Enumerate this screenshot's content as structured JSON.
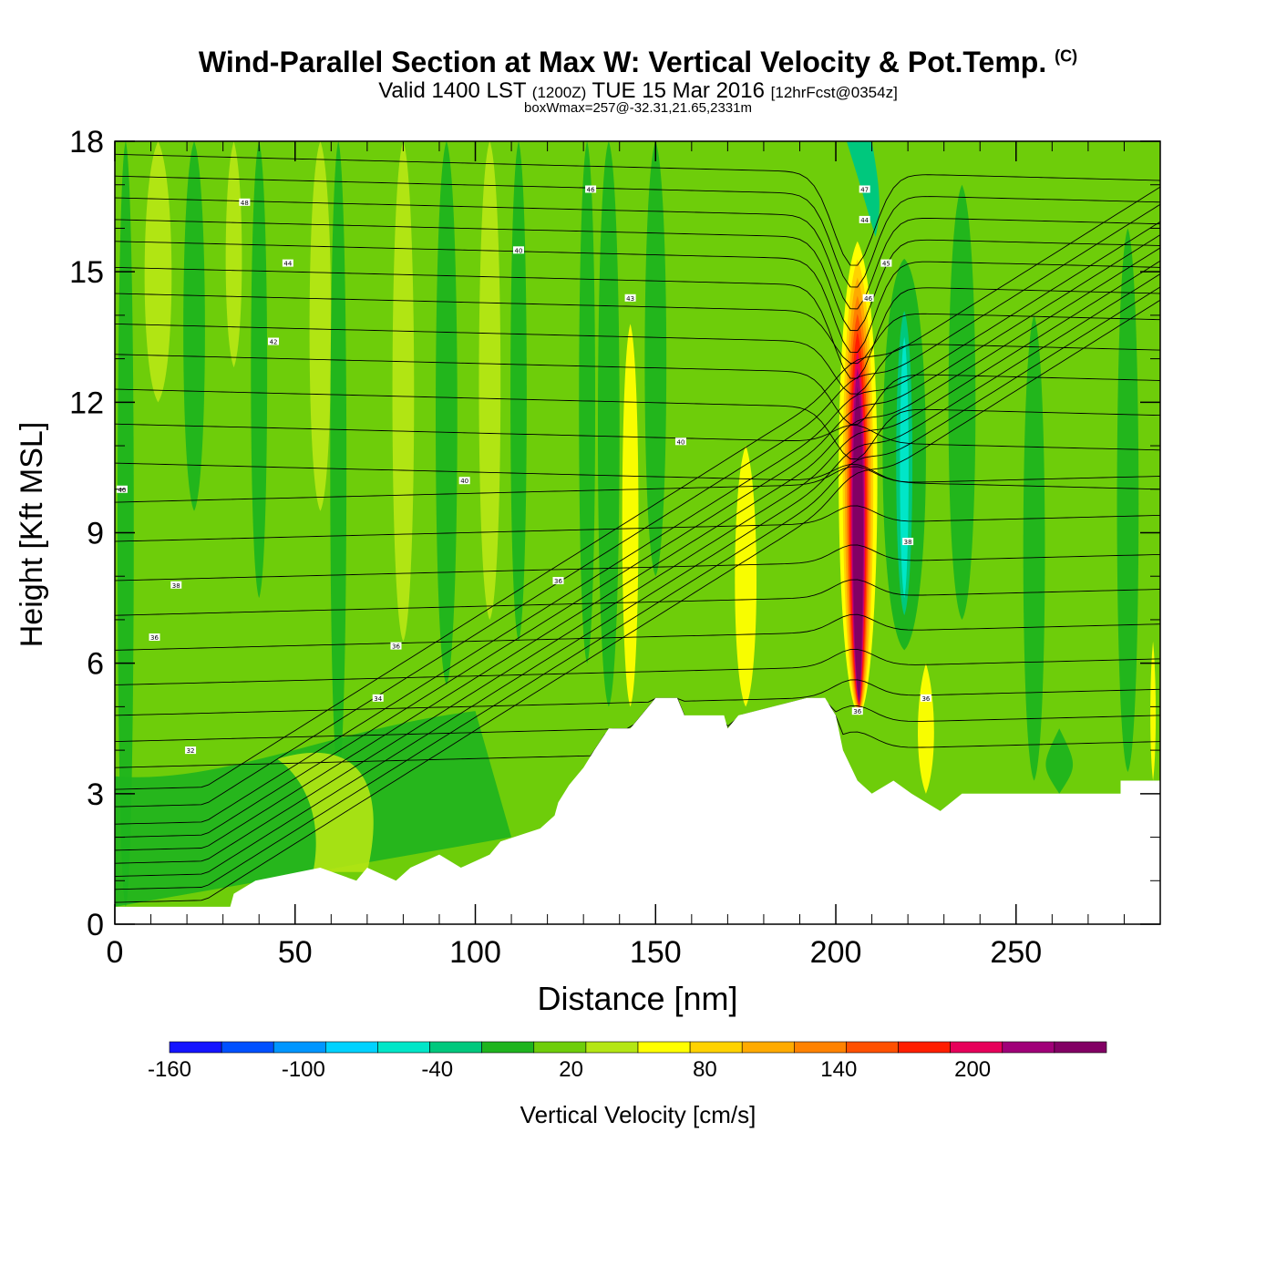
{
  "title": {
    "main": "Wind-Parallel Section at Max W: Vertical Velocity & Pot.Temp.",
    "copyright": "(C)",
    "valid_prefix": "Valid 1400 LST",
    "valid_utc": "(1200Z)",
    "valid_date": "TUE 15 Mar 2016",
    "forecast": "[12hrFcst@0354z]",
    "box_info": "boxWmax=257@-32.31,21.65,2331m"
  },
  "chart_data": {
    "type": "heatmap",
    "xlabel": "Distance [nm]",
    "ylabel": "Height [Kft MSL]",
    "xlim": [
      0,
      290
    ],
    "ylim": [
      0,
      18
    ],
    "xticks": [
      0,
      50,
      100,
      150,
      200,
      250
    ],
    "yticks": [
      0,
      3,
      6,
      9,
      12,
      15,
      18
    ],
    "colorbar": {
      "label": "Vertical Velocity [cm/s]",
      "min": -160,
      "max": 240,
      "step": 20,
      "tick_labels": [
        "-160",
        "-100",
        "-40",
        "20",
        "80",
        "140",
        "200"
      ],
      "tick_values": [
        -160,
        -100,
        -40,
        20,
        80,
        140,
        200
      ],
      "colors": [
        "#1414ff",
        "#0050ff",
        "#0096ff",
        "#00d2ff",
        "#00e6c8",
        "#00c87d",
        "#1eb41e",
        "#6ecd0a",
        "#b4e614",
        "#ffff00",
        "#ffd200",
        "#ffaa00",
        "#ff8200",
        "#ff5000",
        "#ff1e00",
        "#e6005a",
        "#a00078",
        "#820064"
      ]
    },
    "terrain_profile": [
      [
        0,
        0.4
      ],
      [
        32,
        0.4
      ],
      [
        33,
        0.7
      ],
      [
        39,
        1.0
      ],
      [
        57,
        1.3
      ],
      [
        67,
        1.0
      ],
      [
        70,
        1.3
      ],
      [
        78,
        1.0
      ],
      [
        82,
        1.3
      ],
      [
        90,
        1.6
      ],
      [
        96,
        1.3
      ],
      [
        104,
        1.6
      ],
      [
        107,
        1.9
      ],
      [
        118,
        2.2
      ],
      [
        122,
        2.5
      ],
      [
        123,
        2.8
      ],
      [
        126,
        3.2
      ],
      [
        130,
        3.6
      ],
      [
        133,
        4.0
      ],
      [
        137,
        4.5
      ],
      [
        143,
        4.5
      ],
      [
        148,
        5.0
      ],
      [
        150,
        5.2
      ],
      [
        156,
        5.2
      ],
      [
        158,
        4.8
      ],
      [
        169,
        4.8
      ],
      [
        170,
        4.5
      ],
      [
        173,
        4.8
      ],
      [
        192,
        5.2
      ],
      [
        197,
        5.2
      ],
      [
        200,
        4.8
      ],
      [
        202,
        4.0
      ],
      [
        206,
        3.3
      ],
      [
        210,
        3.0
      ],
      [
        216,
        3.3
      ],
      [
        221,
        3.0
      ],
      [
        229,
        2.6
      ],
      [
        235,
        3.0
      ],
      [
        279,
        3.0
      ],
      [
        279,
        3.3
      ],
      [
        290,
        3.3
      ]
    ],
    "updraft_core": {
      "x": 206,
      "z_range": [
        4.8,
        15.7
      ],
      "peak_cm_s": 257
    },
    "downdraft_region": {
      "x": 219,
      "z_range": [
        7.5,
        13.5
      ],
      "min_cm_s": -70
    },
    "theta_contour_labels": [
      {
        "x": 36,
        "z": 16.6,
        "value": "48"
      },
      {
        "x": 48,
        "z": 15.2,
        "value": "44"
      },
      {
        "x": 44,
        "z": 13.4,
        "value": "42"
      },
      {
        "x": 112,
        "z": 15.5,
        "value": "40"
      },
      {
        "x": 132,
        "z": 16.9,
        "value": "46"
      },
      {
        "x": 143,
        "z": 14.4,
        "value": "43"
      },
      {
        "x": 2,
        "z": 10.0,
        "value": "40"
      },
      {
        "x": 97,
        "z": 10.2,
        "value": "40"
      },
      {
        "x": 157,
        "z": 11.1,
        "value": "40"
      },
      {
        "x": 17,
        "z": 7.8,
        "value": "38"
      },
      {
        "x": 11,
        "z": 6.6,
        "value": "36"
      },
      {
        "x": 123,
        "z": 7.9,
        "value": "36"
      },
      {
        "x": 78,
        "z": 6.4,
        "value": "36"
      },
      {
        "x": 73,
        "z": 5.2,
        "value": "34"
      },
      {
        "x": 21,
        "z": 4.0,
        "value": "32"
      },
      {
        "x": 208,
        "z": 16.9,
        "value": "47"
      },
      {
        "x": 208,
        "z": 16.2,
        "value": "44"
      },
      {
        "x": 214,
        "z": 15.2,
        "value": "45"
      },
      {
        "x": 209,
        "z": 14.4,
        "value": "46"
      },
      {
        "x": 220,
        "z": 8.8,
        "value": "38"
      },
      {
        "x": 225,
        "z": 5.2,
        "value": "36"
      },
      {
        "x": 206,
        "z": 4.9,
        "value": "36"
      }
    ],
    "theta_contour_heights": [
      0.5,
      0.8,
      1.1,
      1.4,
      1.7,
      2.0,
      2.3,
      2.7,
      3.1,
      3.6,
      4.2,
      4.8,
      5.5,
      6.3,
      7.1,
      7.9,
      8.8,
      9.7,
      10.6,
      11.5,
      12.3,
      13.1,
      13.8,
      14.5,
      15.1,
      15.7,
      16.2,
      16.7,
      17.2,
      17.7
    ],
    "vertical_streaks": [
      {
        "x": 3,
        "z_bottom": 0.4,
        "z_top": 18,
        "half_width": 3,
        "w_cm_s": -25
      },
      {
        "x": 12,
        "z_bottom": 12.0,
        "z_top": 18,
        "half_width": 5,
        "w_cm_s": 5
      },
      {
        "x": 22,
        "z_bottom": 9.5,
        "z_top": 18,
        "half_width": 4,
        "w_cm_s": -25
      },
      {
        "x": 33,
        "z_bottom": 12.8,
        "z_top": 18,
        "half_width": 3,
        "w_cm_s": 5
      },
      {
        "x": 40,
        "z_bottom": 7.5,
        "z_top": 18,
        "half_width": 3,
        "w_cm_s": -25
      },
      {
        "x": 57,
        "z_bottom": 9.5,
        "z_top": 18,
        "half_width": 4,
        "w_cm_s": 5
      },
      {
        "x": 62,
        "z_bottom": 3.3,
        "z_top": 18,
        "half_width": 3,
        "w_cm_s": -25
      },
      {
        "x": 80,
        "z_bottom": 6.5,
        "z_top": 18,
        "half_width": 4,
        "w_cm_s": 5
      },
      {
        "x": 92,
        "z_bottom": 5.5,
        "z_top": 18,
        "half_width": 4,
        "w_cm_s": -25
      },
      {
        "x": 104,
        "z_bottom": 7.0,
        "z_top": 18,
        "half_width": 4,
        "w_cm_s": 5
      },
      {
        "x": 112,
        "z_bottom": 6.5,
        "z_top": 18,
        "half_width": 3,
        "w_cm_s": -25
      },
      {
        "x": 131,
        "z_bottom": 6.0,
        "z_top": 18,
        "half_width": 3,
        "w_cm_s": -25
      },
      {
        "x": 137,
        "z_bottom": 5.0,
        "z_top": 18,
        "half_width": 4,
        "w_cm_s": -40
      },
      {
        "x": 143,
        "z_bottom": 5.0,
        "z_top": 13.8,
        "half_width": 3,
        "w_cm_s": 30
      },
      {
        "x": 150,
        "z_bottom": 8.0,
        "z_top": 18,
        "half_width": 4,
        "w_cm_s": -25
      },
      {
        "x": 175,
        "z_bottom": 5.0,
        "z_top": 11.0,
        "half_width": 4,
        "w_cm_s": 30
      },
      {
        "x": 235,
        "z_bottom": 7.0,
        "z_top": 17.0,
        "half_width": 5,
        "w_cm_s": -25
      },
      {
        "x": 255,
        "z_bottom": 3.3,
        "z_top": 14.0,
        "half_width": 4,
        "w_cm_s": -25
      },
      {
        "x": 281,
        "z_bottom": 3.5,
        "z_top": 16.0,
        "half_width": 4,
        "w_cm_s": -25
      },
      {
        "x": 225,
        "z_bottom": 3.0,
        "z_top": 6.0,
        "half_width": 3,
        "w_cm_s": 30
      },
      {
        "x": 262,
        "z_bottom": 3.0,
        "z_top": 4.5,
        "half_width": 5,
        "w_cm_s": -25
      },
      {
        "x": 288,
        "z_bottom": 3.3,
        "z_top": 6.5,
        "half_width": 1,
        "w_cm_s": 30
      }
    ]
  }
}
